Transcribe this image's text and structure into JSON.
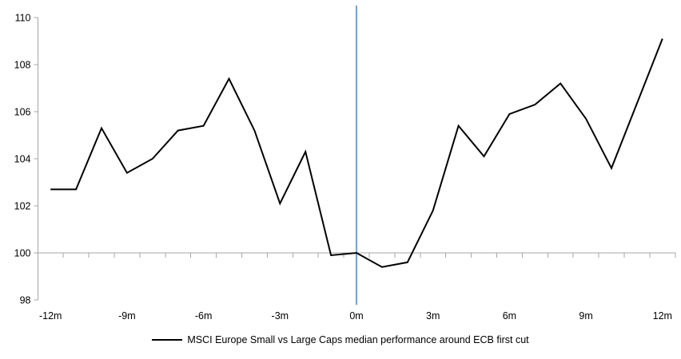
{
  "chart_data": {
    "type": "line",
    "title": "",
    "legend_position": "bottom-center",
    "x_months": [
      -12,
      -11,
      -10,
      -9,
      -8,
      -7,
      -6,
      -5,
      -4,
      -3,
      -2,
      -1,
      0,
      1,
      2,
      3,
      4,
      5,
      6,
      7,
      8,
      9,
      10,
      11,
      12
    ],
    "series": [
      {
        "name": "MSCI Europe Small vs Large Caps median performance around ECB first cut",
        "values": [
          102.7,
          102.7,
          105.3,
          103.4,
          104.0,
          105.2,
          105.4,
          107.4,
          105.2,
          102.1,
          104.3,
          99.9,
          100.0,
          99.4,
          99.6,
          101.8,
          105.4,
          104.1,
          105.9,
          106.3,
          107.2,
          105.7,
          103.6,
          106.35,
          109.1
        ]
      }
    ],
    "x_tick_labels": [
      "-12m",
      "-9m",
      "-6m",
      "-3m",
      "0m",
      "3m",
      "6m",
      "9m",
      "12m"
    ],
    "x_tick_label_every": 3,
    "y_ticks": [
      98,
      100,
      102,
      104,
      106,
      108,
      110
    ],
    "ylim": [
      98,
      110
    ],
    "baseline_value": 100,
    "event_line_at_month": 0,
    "grid": "baseline-only",
    "colors": {
      "series_line": "#000000",
      "event_line": "#78A5D2",
      "axis_line": "#A6A6A6",
      "tick_label": "#000000"
    }
  }
}
